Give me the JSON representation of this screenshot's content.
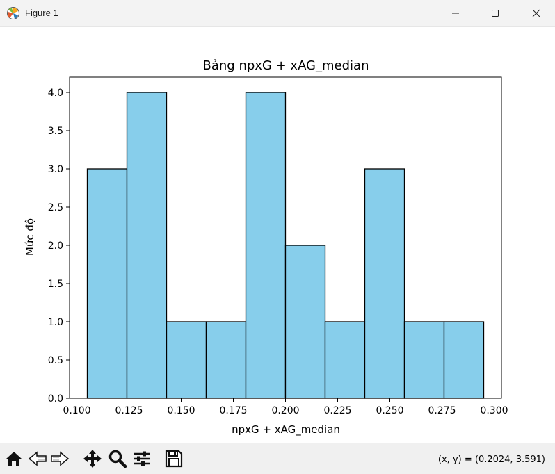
{
  "window": {
    "title": "Figure 1",
    "icon": "matplotlib-icon"
  },
  "toolbar": {
    "tools": [
      "home-icon",
      "back-arrow-icon",
      "forward-arrow-icon",
      "pan-move-icon",
      "zoom-magnifier-icon",
      "configure-subplots-icon",
      "save-icon"
    ],
    "coords_text": "(x, y) = (0.2024, 3.591)"
  },
  "chart_data": {
    "type": "bar",
    "title": "Bảng npxG + xAG_median",
    "xlabel": "npxG + xAG_median",
    "ylabel": "Mức độ",
    "bin_edges": [
      0.105,
      0.124,
      0.143,
      0.162,
      0.181,
      0.2,
      0.219,
      0.238,
      0.257,
      0.276,
      0.295
    ],
    "values": [
      3,
      4,
      1,
      1,
      4,
      2,
      1,
      3,
      1,
      1
    ],
    "xlim": [
      0.0965,
      0.3035
    ],
    "ylim": [
      0,
      4.2
    ],
    "xticks": [
      0.1,
      0.125,
      0.15,
      0.175,
      0.2,
      0.225,
      0.25,
      0.275,
      0.3
    ],
    "xtick_labels": [
      "0.100",
      "0.125",
      "0.150",
      "0.175",
      "0.200",
      "0.225",
      "0.250",
      "0.275",
      "0.300"
    ],
    "yticks": [
      0,
      0.5,
      1,
      1.5,
      2,
      2.5,
      3,
      3.5,
      4
    ],
    "ytick_labels": [
      "0.0",
      "0.5",
      "1.0",
      "1.5",
      "2.0",
      "2.5",
      "3.0",
      "3.5",
      "4.0"
    ],
    "bar_color": "#87ceeb",
    "edge_color": "#000000",
    "grid": false,
    "legend": "none"
  }
}
